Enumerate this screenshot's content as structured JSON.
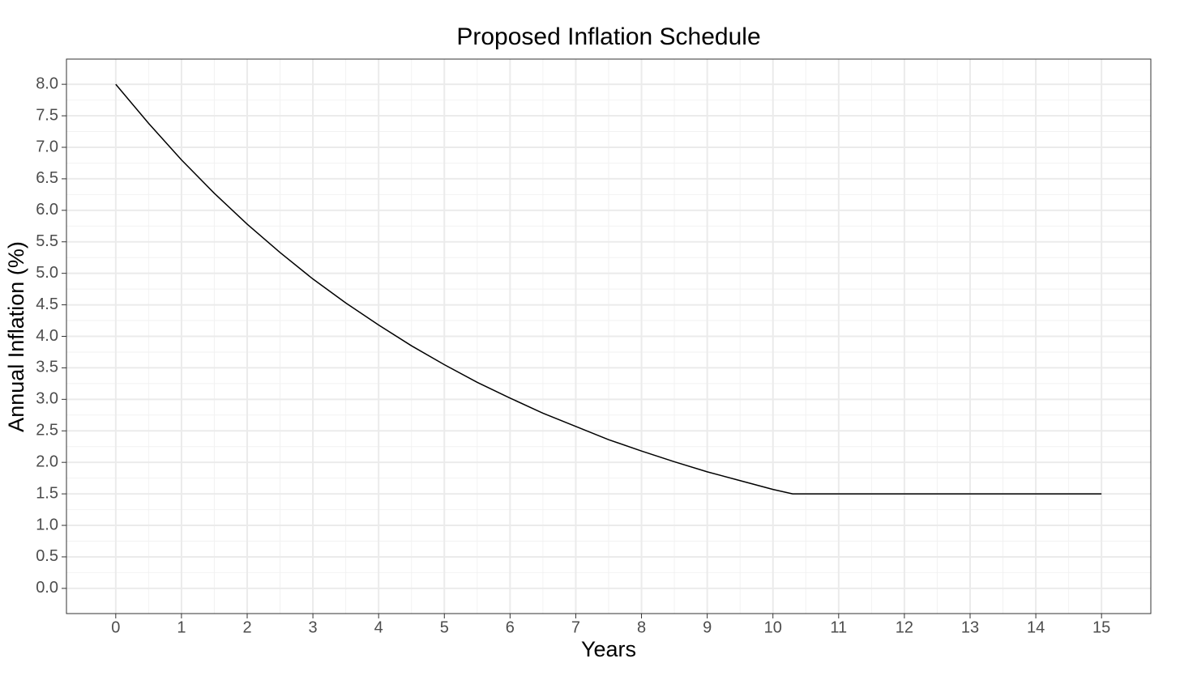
{
  "chart_data": {
    "type": "line",
    "title": "Proposed Inflation Schedule",
    "x_label": "Years",
    "y_label": "Annual Inflation (%)",
    "x": [
      0,
      0.5,
      1,
      1.5,
      2,
      2.5,
      3,
      3.5,
      4,
      4.5,
      5,
      5.5,
      6,
      6.5,
      7,
      7.5,
      8,
      8.5,
      9,
      9.5,
      10,
      10.3,
      15
    ],
    "series": [
      {
        "color": "#000000",
        "values": [
          8.0,
          7.38,
          6.8,
          6.27,
          5.78,
          5.33,
          4.91,
          4.53,
          4.18,
          3.85,
          3.55,
          3.27,
          3.02,
          2.78,
          2.57,
          2.36,
          2.18,
          2.01,
          1.85,
          1.71,
          1.57,
          1.5,
          1.5
        ]
      }
    ],
    "xlim": [
      -0.75,
      15.75
    ],
    "xticks": [
      0,
      1,
      2,
      3,
      4,
      5,
      6,
      7,
      8,
      9,
      10,
      11,
      12,
      13,
      14,
      15
    ],
    "ylim": [
      -0.4,
      8.4
    ],
    "yticks": [
      {
        "value": 0,
        "label": "0.0"
      },
      {
        "value": 0.5,
        "label": "0.5"
      },
      {
        "value": 1,
        "label": "1.0"
      },
      {
        "value": 1.5,
        "label": "1.5"
      },
      {
        "value": 2,
        "label": "2.0"
      },
      {
        "value": 2.5,
        "label": "2.5"
      },
      {
        "value": 3,
        "label": "3.0"
      },
      {
        "value": 3.5,
        "label": "3.5"
      },
      {
        "value": 4,
        "label": "4.0"
      },
      {
        "value": 4.5,
        "label": "4.5"
      },
      {
        "value": 5,
        "label": "5.0"
      },
      {
        "value": 5.5,
        "label": "5.5"
      },
      {
        "value": 6,
        "label": "6.0"
      },
      {
        "value": 6.5,
        "label": "6.5"
      },
      {
        "value": 7,
        "label": "7.0"
      },
      {
        "value": 7.5,
        "label": "7.5"
      },
      {
        "value": 8,
        "label": "8.0"
      }
    ],
    "grid": true
  }
}
